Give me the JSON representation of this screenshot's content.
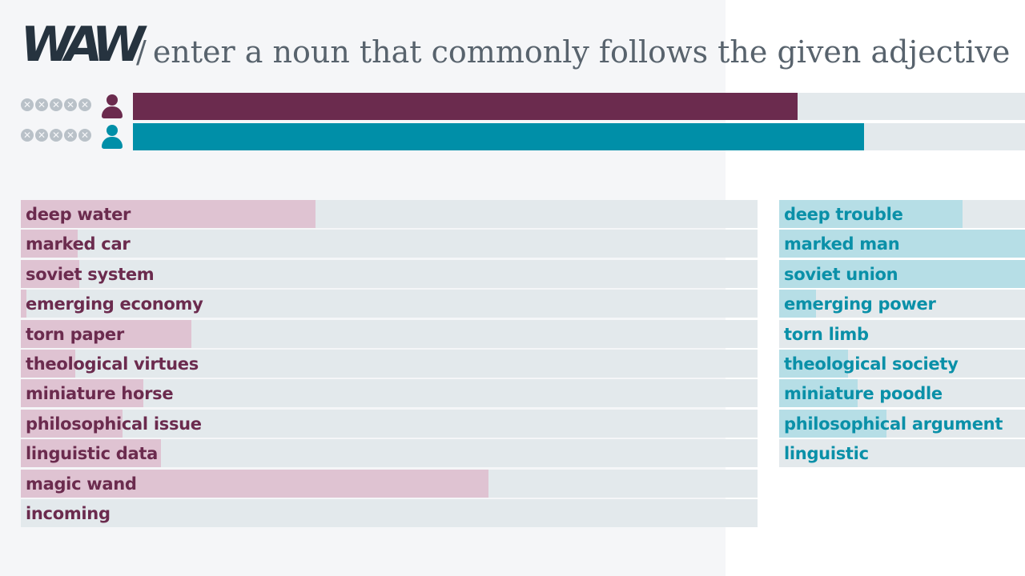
{
  "header": {
    "logo": "WAW",
    "instruction": "enter a noun that commonly follows the given adjective",
    "separator": "/"
  },
  "players": [
    {
      "lives_icon": "x-circle-icon",
      "lives": 5,
      "color": "#6b2b4e",
      "progress": 0.745
    },
    {
      "lives_icon": "x-circle-icon",
      "lives": 5,
      "color": "#008fa8",
      "progress": 0.82
    }
  ],
  "colors": {
    "player1_text": "#6b2b4e",
    "player1_fill": "#dfc3d2",
    "player2_text": "#0a90a8",
    "player2_fill": "#b6dee6",
    "track": "#e3e9ec"
  },
  "player1_answers": [
    {
      "text": "deep water",
      "score": 0.4
    },
    {
      "text": "marked car",
      "score": 0.077
    },
    {
      "text": "soviet system",
      "score": 0.079
    },
    {
      "text": "emerging economy",
      "score": 0.008
    },
    {
      "text": "torn paper",
      "score": 0.231
    },
    {
      "text": "theological virtues",
      "score": 0.074
    },
    {
      "text": "miniature horse",
      "score": 0.166
    },
    {
      "text": "philosophical issue",
      "score": 0.138
    },
    {
      "text": "linguistic data",
      "score": 0.19
    },
    {
      "text": "magic wand",
      "score": 0.635
    },
    {
      "text": "incoming",
      "score": 0
    }
  ],
  "player2_answers": [
    {
      "text": "deep trouble",
      "score": 0.746
    },
    {
      "text": "marked man",
      "score": 1.0
    },
    {
      "text": "soviet union",
      "score": 1.0
    },
    {
      "text": "emerging power",
      "score": 0.15
    },
    {
      "text": "torn limb",
      "score": 0.0
    },
    {
      "text": "theological society",
      "score": 0.28
    },
    {
      "text": "miniature poodle",
      "score": 0.32
    },
    {
      "text": "philosophical argument",
      "score": 0.436
    },
    {
      "text": "linguistic",
      "score": 0
    }
  ]
}
